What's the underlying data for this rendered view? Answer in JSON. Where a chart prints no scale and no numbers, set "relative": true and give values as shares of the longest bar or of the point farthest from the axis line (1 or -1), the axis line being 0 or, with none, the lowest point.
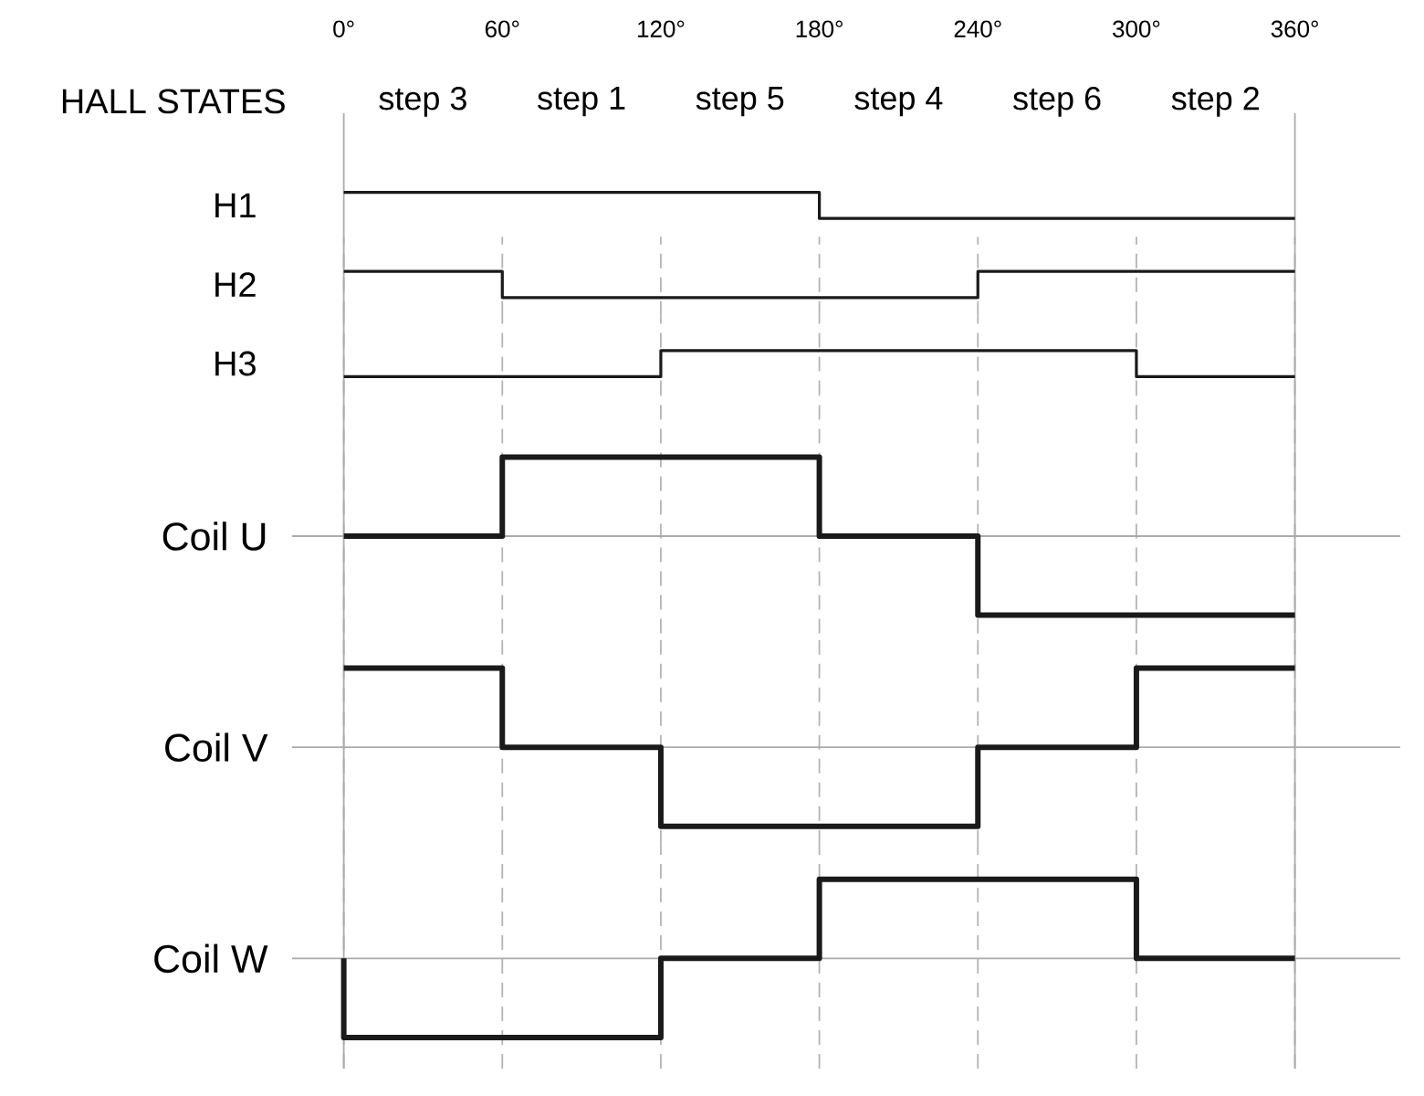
{
  "chart_data": [
    {
      "type": "other",
      "title": "HALL STATES",
      "categories": [
        "step 3",
        "step 1",
        "step 5",
        "step 4",
        "step 6",
        "step 2"
      ]
    },
    {
      "type": "step",
      "relative": true,
      "ylabel": "H1",
      "x": [
        0,
        60,
        120,
        180,
        240,
        300,
        360
      ],
      "values": [
        1,
        1,
        1,
        0,
        0,
        0,
        0
      ],
      "color": "#1a1a1a",
      "xlim": [
        0,
        360
      ],
      "xticks": [
        {
          "value": 0,
          "label": "0°"
        },
        {
          "value": 60,
          "label": "60°"
        },
        {
          "value": 120,
          "label": "120°"
        },
        {
          "value": 180,
          "label": "180°"
        },
        {
          "value": 240,
          "label": "240°"
        },
        {
          "value": 300,
          "label": "300°"
        },
        {
          "value": 360,
          "label": "360°"
        }
      ]
    },
    {
      "type": "step",
      "relative": true,
      "ylabel": "H2",
      "x": [
        0,
        60,
        120,
        180,
        240,
        300,
        360
      ],
      "values": [
        1,
        0,
        0,
        0,
        1,
        1,
        1
      ],
      "color": "#1a1a1a",
      "xlim": [
        0,
        360
      ],
      "xticks": [
        0,
        60,
        120,
        180,
        240,
        300,
        360
      ],
      "tick_labels": false,
      "grid": "x"
    },
    {
      "type": "step",
      "relative": true,
      "ylabel": "H3",
      "x": [
        0,
        60,
        120,
        180,
        240,
        300,
        360
      ],
      "values": [
        0,
        0,
        1,
        1,
        1,
        0,
        0
      ],
      "color": "#1a1a1a",
      "xlim": [
        0,
        360
      ],
      "xticks": [
        0,
        60,
        120,
        180,
        240,
        300,
        360
      ],
      "tick_labels": false,
      "grid": "x"
    },
    {
      "type": "step",
      "relative": true,
      "ylabel": "Coil U",
      "x": [
        0,
        60,
        120,
        180,
        240,
        300,
        360
      ],
      "values": [
        0,
        1,
        1,
        0,
        -1,
        -1,
        -1
      ],
      "color": "#1a1a1a",
      "xlim": [
        0,
        360
      ],
      "xticks": [
        0,
        60,
        120,
        180,
        240,
        300,
        360
      ],
      "tick_labels": false,
      "grid": "x"
    },
    {
      "type": "step",
      "relative": true,
      "ylabel": "Coil V",
      "x": [
        0,
        60,
        120,
        180,
        240,
        300,
        360
      ],
      "values": [
        1,
        0,
        -1,
        -1,
        0,
        1,
        1
      ],
      "color": "#1a1a1a",
      "xlim": [
        0,
        360
      ],
      "xticks": [
        0,
        60,
        120,
        180,
        240,
        300,
        360
      ],
      "tick_labels": false,
      "grid": "x"
    },
    {
      "type": "step",
      "relative": true,
      "ylabel": "Coil W",
      "x": [
        0,
        0,
        60,
        120,
        180,
        240,
        300,
        360
      ],
      "values": [
        0,
        -1,
        -1,
        0,
        1,
        1,
        0,
        0
      ],
      "color": "#1a1a1a",
      "xlim": [
        0,
        360
      ],
      "xticks": [
        0,
        60,
        120,
        180,
        240,
        300,
        360
      ],
      "tick_labels": false,
      "grid": "x"
    }
  ]
}
